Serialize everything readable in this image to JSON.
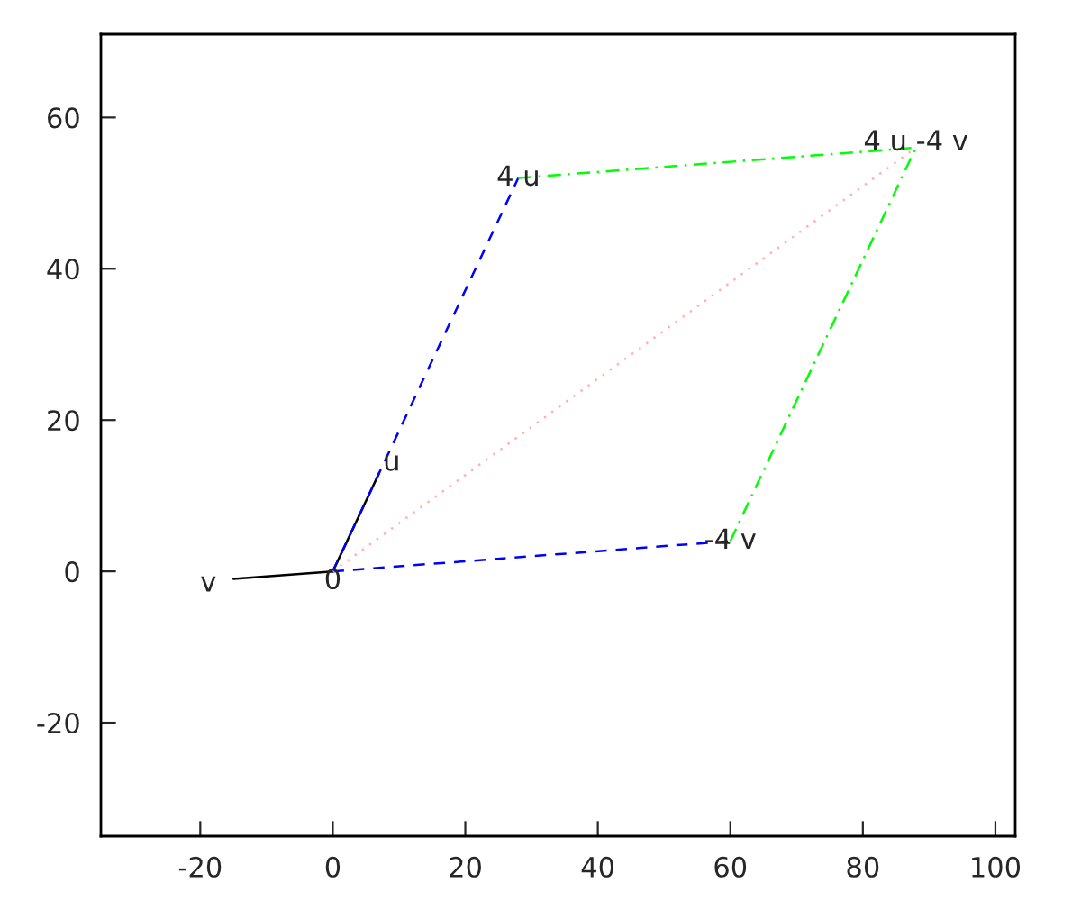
{
  "chart_data": {
    "type": "line",
    "series": [
      {
        "x": [
          0,
          7
        ],
        "values": [
          0,
          13
        ],
        "color": "#000000",
        "line_style": "solid"
      },
      {
        "x": [
          0,
          -15
        ],
        "values": [
          0,
          -1
        ],
        "color": "#000000",
        "line_style": "solid"
      },
      {
        "x": [
          0,
          28
        ],
        "values": [
          0,
          52
        ],
        "color": "#0000ff",
        "line_style": "dashed"
      },
      {
        "x": [
          0,
          60
        ],
        "values": [
          0,
          4
        ],
        "color": "#0000ff",
        "line_style": "dashed"
      },
      {
        "x": [
          28,
          88
        ],
        "values": [
          52,
          56
        ],
        "color": "#00ff00",
        "line_style": "dashdot"
      },
      {
        "x": [
          60,
          88
        ],
        "values": [
          4,
          56
        ],
        "color": "#00ff00",
        "line_style": "dashdot"
      },
      {
        "x": [
          0,
          88
        ],
        "values": [
          0,
          56
        ],
        "color": "#ffb0b0",
        "line_style": "dotted"
      }
    ],
    "annotations": [
      {
        "text": "0",
        "x": 0,
        "y": 0
      },
      {
        "text": "u",
        "x": 7,
        "y": 13
      },
      {
        "text": "v",
        "x": -15,
        "y": -1
      },
      {
        "text": "4 u",
        "x": 28,
        "y": 52
      },
      {
        "text": "-4 v",
        "x": 60,
        "y": 4
      },
      {
        "text": "4 u -4 v",
        "x": 88,
        "y": 56
      }
    ],
    "xlim": [
      -35,
      103
    ],
    "ylim": [
      -35,
      71
    ],
    "xticks": [
      -20,
      0,
      20,
      40,
      60,
      80,
      100
    ],
    "yticks": [
      -20,
      0,
      20,
      40,
      60
    ],
    "grid": false,
    "legend": false
  }
}
